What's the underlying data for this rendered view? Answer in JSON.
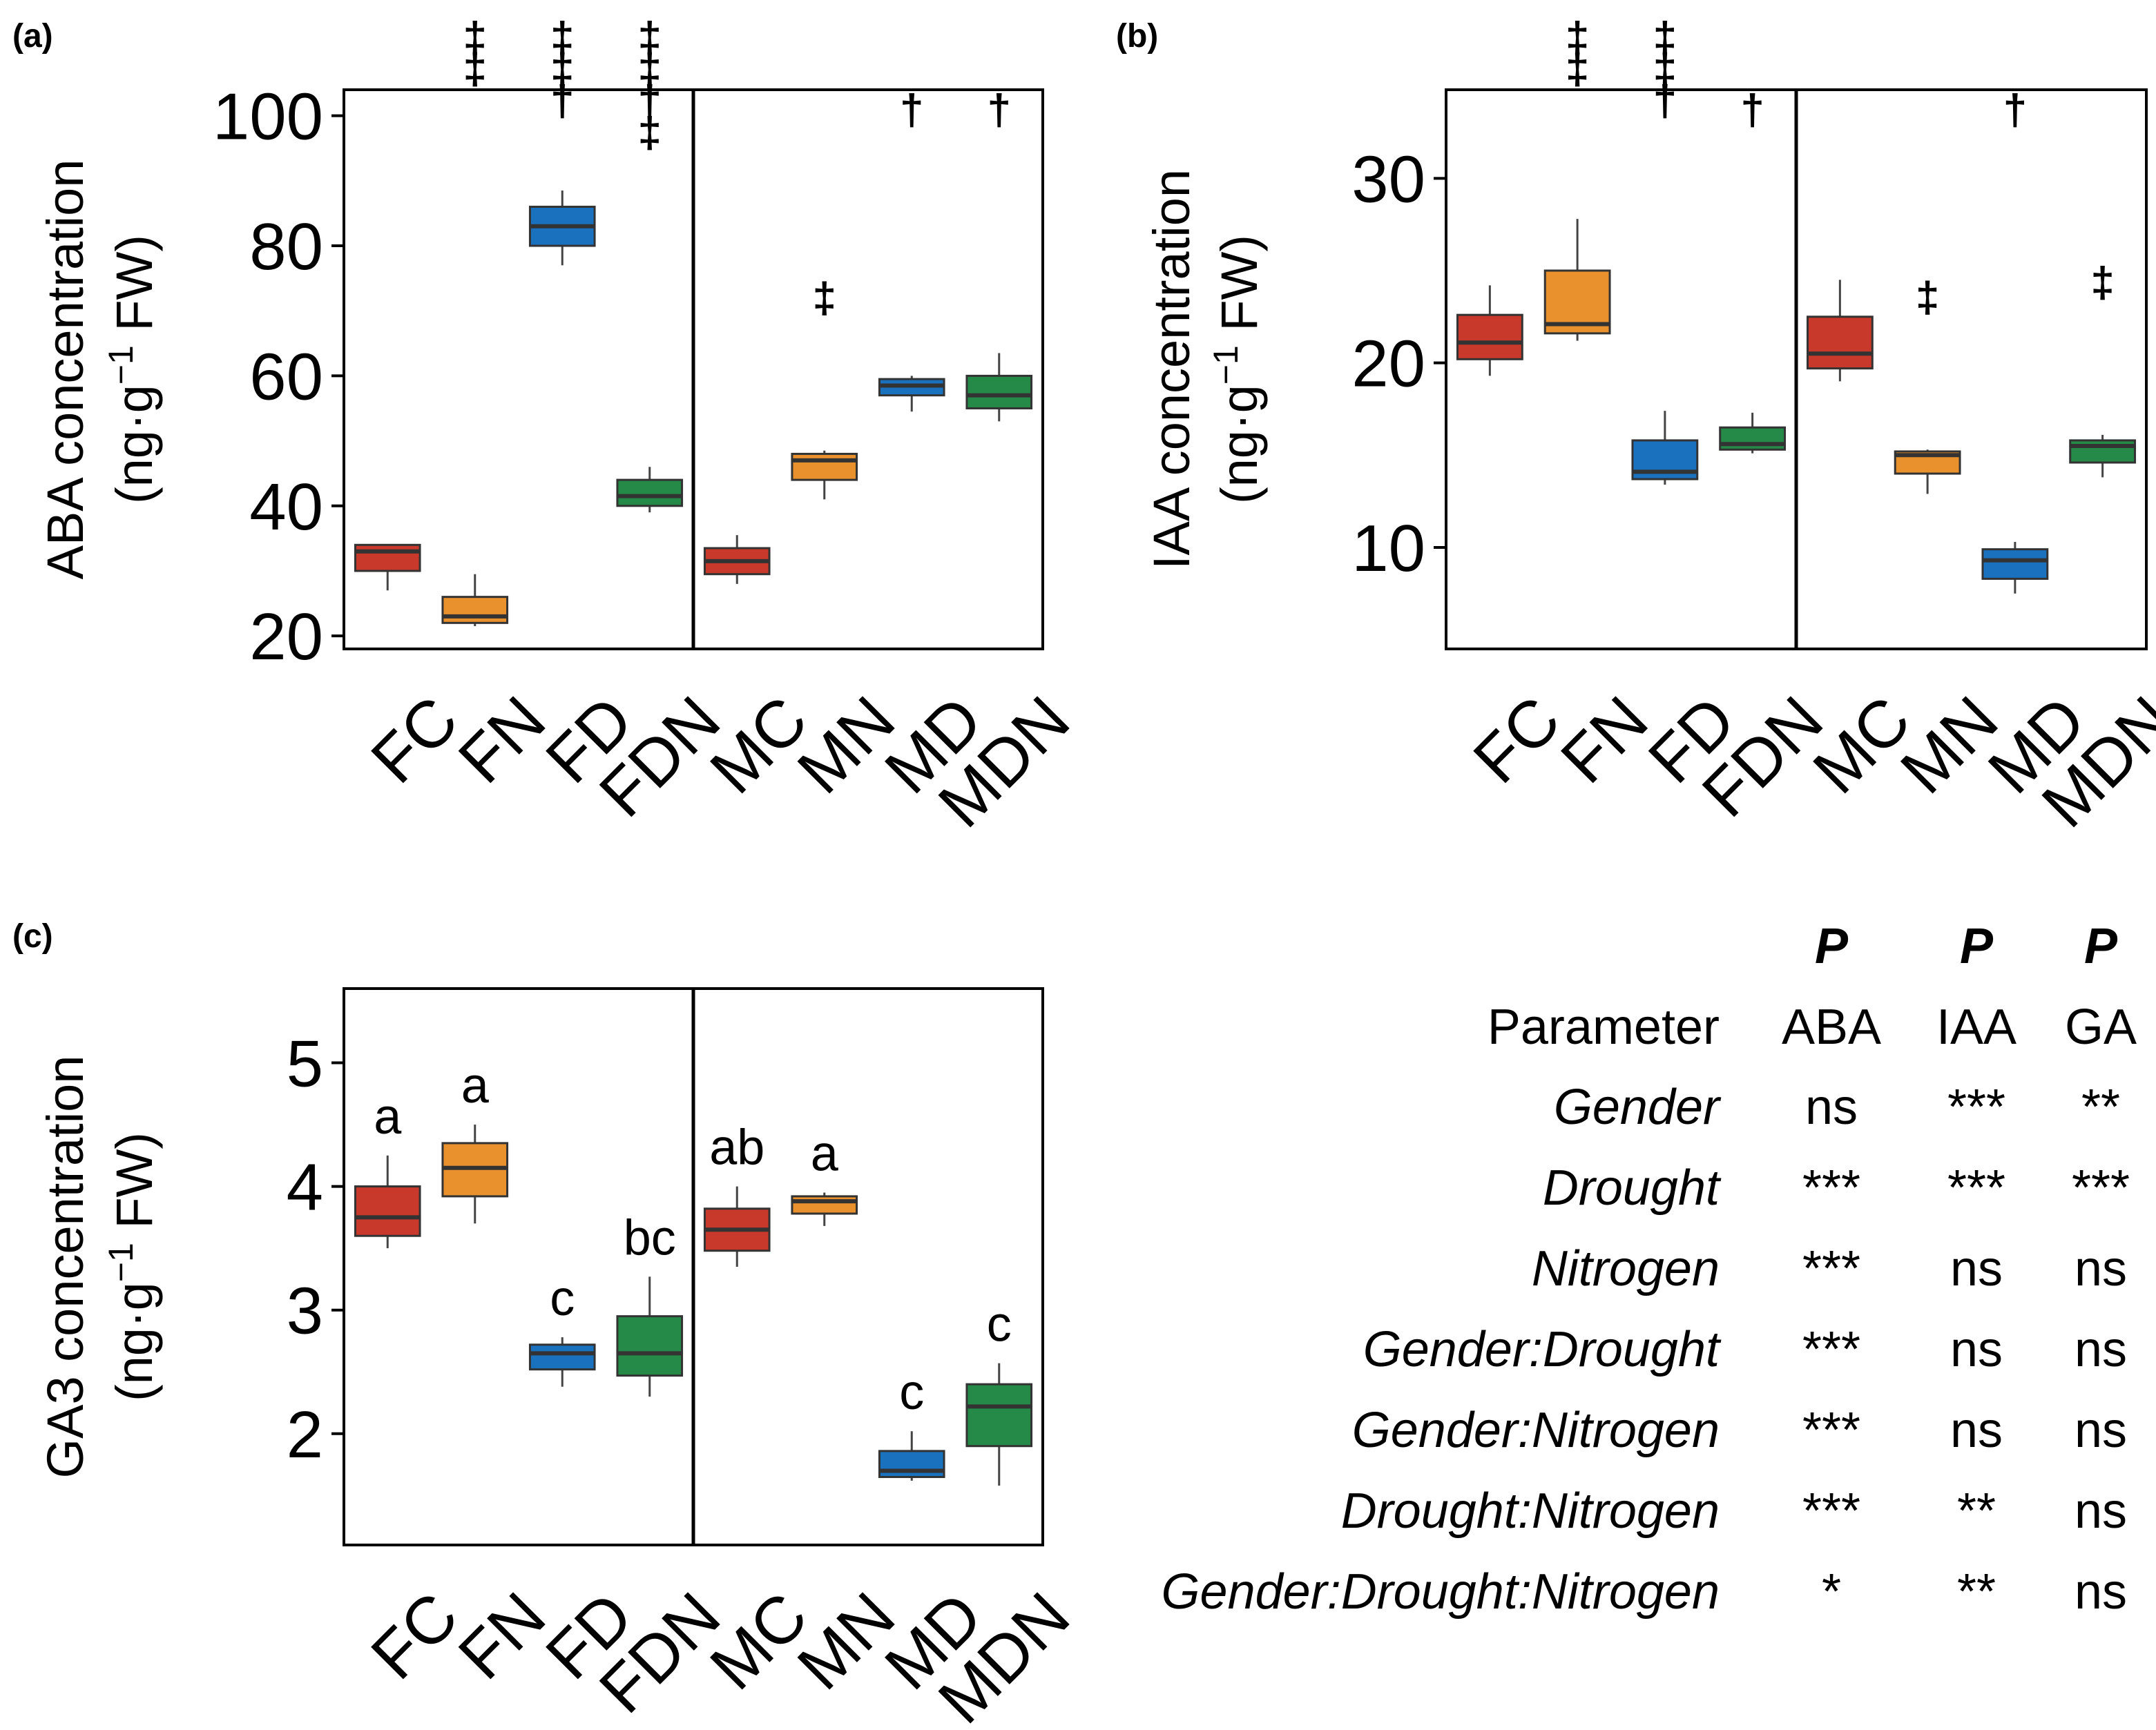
{
  "colors": {
    "red": "#C8392B",
    "orange": "#E8912D",
    "blue": "#1A72BF",
    "green": "#258A48",
    "median": "#333333"
  },
  "chart_data": [
    {
      "panel": "(a)",
      "type": "box",
      "ylabel_line1": "ABA concentration",
      "ylabel_line2": "(ng·g",
      "ylabel_sup": "−1",
      "ylabel_tail": " FW)",
      "ylim": [
        18,
        104
      ],
      "yticks": [
        "20",
        "40",
        "60",
        "80",
        "100"
      ],
      "categories": [
        "FC",
        "FN",
        "FD",
        "FDN",
        "MC",
        "MN",
        "MD",
        "MDN"
      ],
      "boxes": [
        {
          "min": 27,
          "q1": 30,
          "median": 33,
          "q3": 34,
          "max": 34
        },
        {
          "min": 21.5,
          "q1": 22,
          "median": 23,
          "q3": 26,
          "max": 29.5
        },
        {
          "min": 77,
          "q1": 80,
          "median": 83,
          "q3": 86,
          "max": 88.5
        },
        {
          "min": 39,
          "q1": 40,
          "median": 41.5,
          "q3": 44,
          "max": 46
        },
        {
          "min": 28,
          "q1": 29.5,
          "median": 31.5,
          "q3": 33.5,
          "max": 35.5
        },
        {
          "min": 41,
          "q1": 44,
          "median": 47,
          "q3": 48,
          "max": 48.5
        },
        {
          "min": 54.5,
          "q1": 57,
          "median": 58.5,
          "q3": 59.5,
          "max": 60
        },
        {
          "min": 53,
          "q1": 55,
          "median": 57,
          "q3": 60,
          "max": 63.5
        }
      ],
      "annotations": [
        {
          "category": "FN",
          "symbols": [
            "‡",
            "‡"
          ]
        },
        {
          "category": "FD",
          "symbols": [
            "‡",
            "‡",
            "†"
          ]
        },
        {
          "category": "FDN",
          "symbols": [
            "‡",
            "‡",
            "†",
            "‡"
          ]
        },
        {
          "category": "MN",
          "symbols": [
            "‡"
          ]
        },
        {
          "category": "MD",
          "symbols": [
            "†"
          ]
        },
        {
          "category": "MDN",
          "symbols": [
            "†"
          ]
        }
      ]
    },
    {
      "panel": "(b)",
      "type": "box",
      "ylabel_line1": "IAA concentration",
      "ylabel_line2": "(ng·g",
      "ylabel_sup": "−1",
      "ylabel_tail": " FW)",
      "ylim": [
        4.5,
        34.8
      ],
      "yticks": [
        "10",
        "20",
        "30"
      ],
      "categories": [
        "FC",
        "FN",
        "FD",
        "FDN",
        "MC",
        "MN",
        "MD",
        "MDN"
      ],
      "boxes": [
        {
          "min": 19.3,
          "q1": 20.2,
          "median": 21.1,
          "q3": 22.6,
          "max": 24.2
        },
        {
          "min": 21.2,
          "q1": 21.6,
          "median": 22.1,
          "q3": 25,
          "max": 27.8
        },
        {
          "min": 13.4,
          "q1": 13.7,
          "median": 14.1,
          "q3": 15.8,
          "max": 17.4
        },
        {
          "min": 15.1,
          "q1": 15.3,
          "median": 15.6,
          "q3": 16.5,
          "max": 17.3
        },
        {
          "min": 19,
          "q1": 19.7,
          "median": 20.5,
          "q3": 22.5,
          "max": 24.5
        },
        {
          "min": 12.9,
          "q1": 14,
          "median": 15,
          "q3": 15.2,
          "max": 15.3
        },
        {
          "min": 7.5,
          "q1": 8.3,
          "median": 9.3,
          "q3": 9.9,
          "max": 10.3
        },
        {
          "min": 13.8,
          "q1": 14.6,
          "median": 15.5,
          "q3": 15.8,
          "max": 16.1
        }
      ],
      "annotations": [
        {
          "category": "FN",
          "symbols": [
            "‡",
            "‡"
          ]
        },
        {
          "category": "FD",
          "symbols": [
            "‡",
            "‡",
            "†"
          ]
        },
        {
          "category": "FDN",
          "symbols": [
            "†"
          ]
        },
        {
          "category": "MN",
          "symbols": [
            "‡"
          ]
        },
        {
          "category": "MD",
          "symbols": [
            "†"
          ]
        },
        {
          "category": "MDN",
          "symbols": [
            "‡"
          ]
        }
      ]
    },
    {
      "panel": "(c)",
      "type": "box",
      "ylabel_line1": "GA3 concentration",
      "ylabel_line2": "(ng·g",
      "ylabel_sup": "−1",
      "ylabel_tail": " FW)",
      "ylim": [
        1.1,
        5.6
      ],
      "yticks": [
        "2",
        "3",
        "4",
        "5"
      ],
      "categories": [
        "FC",
        "FN",
        "FD",
        "FDN",
        "MC",
        "MN",
        "MD",
        "MDN"
      ],
      "boxes": [
        {
          "min": 3.5,
          "q1": 3.6,
          "median": 3.75,
          "q3": 4,
          "max": 4.25
        },
        {
          "min": 3.7,
          "q1": 3.92,
          "median": 4.15,
          "q3": 4.35,
          "max": 4.5
        },
        {
          "min": 2.38,
          "q1": 2.52,
          "median": 2.65,
          "q3": 2.72,
          "max": 2.78
        },
        {
          "min": 2.3,
          "q1": 2.47,
          "median": 2.65,
          "q3": 2.95,
          "max": 3.27
        },
        {
          "min": 3.35,
          "q1": 3.48,
          "median": 3.65,
          "q3": 3.82,
          "max": 4
        },
        {
          "min": 3.68,
          "q1": 3.78,
          "median": 3.88,
          "q3": 3.92,
          "max": 3.95
        },
        {
          "min": 1.62,
          "q1": 1.65,
          "median": 1.7,
          "q3": 1.86,
          "max": 2.02
        },
        {
          "min": 1.58,
          "q1": 1.9,
          "median": 2.22,
          "q3": 2.4,
          "max": 2.57
        }
      ],
      "letters": [
        "a",
        "a",
        "c",
        "bc",
        "ab",
        "a",
        "c",
        "c"
      ]
    }
  ],
  "table": {
    "header_p": [
      "P",
      "P",
      "P"
    ],
    "header_row": [
      "Parameter",
      "ABA",
      "IAA",
      "GA"
    ],
    "rows": [
      {
        "param": "Gender",
        "aba": "ns",
        "iaa": "***",
        "ga": "**"
      },
      {
        "param": "Drought",
        "aba": "***",
        "iaa": "***",
        "ga": "***"
      },
      {
        "param": "Nitrogen",
        "aba": "***",
        "iaa": "ns",
        "ga": "ns"
      },
      {
        "param": "Gender:Drought",
        "aba": "***",
        "iaa": "ns",
        "ga": "ns"
      },
      {
        "param": "Gender:Nitrogen",
        "aba": "***",
        "iaa": "ns",
        "ga": "ns"
      },
      {
        "param": "Drought:Nitrogen",
        "aba": "***",
        "iaa": "**",
        "ga": "ns"
      },
      {
        "param": "Gender:Drought:Nitrogen",
        "aba": "*",
        "iaa": "**",
        "ga": "ns"
      }
    ]
  }
}
